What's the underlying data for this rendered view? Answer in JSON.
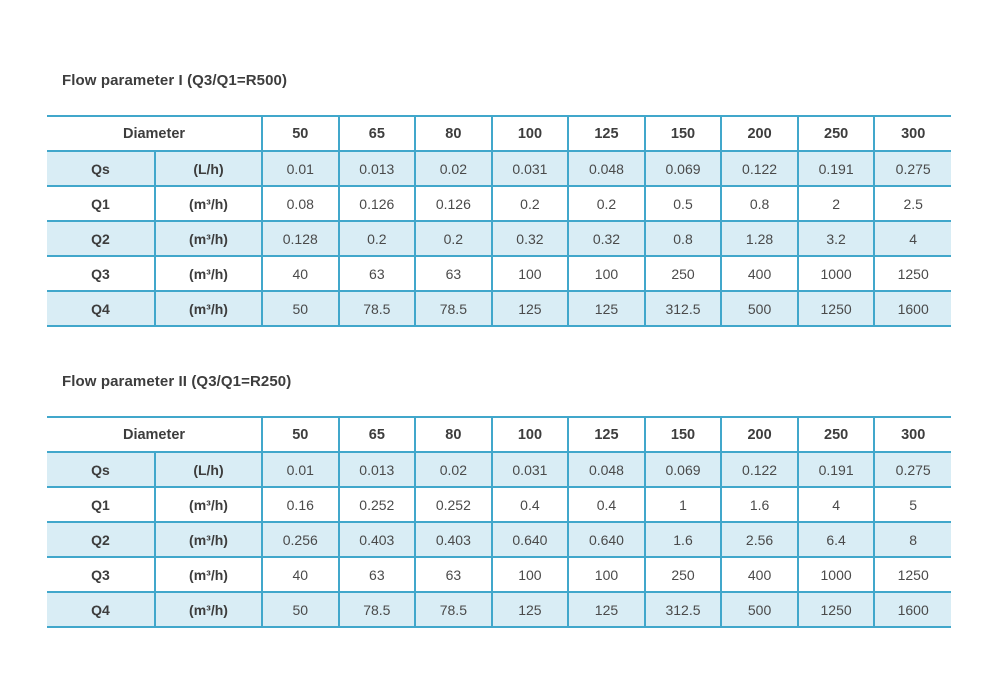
{
  "page": {
    "background": "#ffffff"
  },
  "colors": {
    "border": "#41a7cb",
    "row_fill": "#d9edf5",
    "value_text": "#4a4a4a",
    "heading_text": "#3d3d3d"
  },
  "tables": [
    {
      "title": "Flow parameter I (Q3/Q1=R500)",
      "header": {
        "label": "Diameter",
        "columns": [
          "50",
          "65",
          "80",
          "100",
          "125",
          "150",
          "200",
          "250",
          "300"
        ]
      },
      "rows": [
        {
          "name": "Qs",
          "unit": "(L/h)",
          "striped": true,
          "values": [
            "0.01",
            "0.013",
            "0.02",
            "0.031",
            "0.048",
            "0.069",
            "0.122",
            "0.191",
            "0.275"
          ]
        },
        {
          "name": "Q1",
          "unit": "(m³/h)",
          "striped": false,
          "values": [
            "0.08",
            "0.126",
            "0.126",
            "0.2",
            "0.2",
            "0.5",
            "0.8",
            "2",
            "2.5"
          ]
        },
        {
          "name": "Q2",
          "unit": "(m³/h)",
          "striped": true,
          "values": [
            "0.128",
            "0.2",
            "0.2",
            "0.32",
            "0.32",
            "0.8",
            "1.28",
            "3.2",
            "4"
          ]
        },
        {
          "name": "Q3",
          "unit": "(m³/h)",
          "striped": false,
          "values": [
            "40",
            "63",
            "63",
            "100",
            "100",
            "250",
            "400",
            "1000",
            "1250"
          ]
        },
        {
          "name": "Q4",
          "unit": "(m³/h)",
          "striped": true,
          "values": [
            "50",
            "78.5",
            "78.5",
            "125",
            "125",
            "312.5",
            "500",
            "1250",
            "1600"
          ]
        }
      ]
    },
    {
      "title": "Flow parameter II (Q3/Q1=R250)",
      "header": {
        "label": "Diameter",
        "columns": [
          "50",
          "65",
          "80",
          "100",
          "125",
          "150",
          "200",
          "250",
          "300"
        ]
      },
      "rows": [
        {
          "name": "Qs",
          "unit": "(L/h)",
          "striped": true,
          "values": [
            "0.01",
            "0.013",
            "0.02",
            "0.031",
            "0.048",
            "0.069",
            "0.122",
            "0.191",
            "0.275"
          ]
        },
        {
          "name": "Q1",
          "unit": "(m³/h)",
          "striped": false,
          "values": [
            "0.16",
            "0.252",
            "0.252",
            "0.4",
            "0.4",
            "1",
            "1.6",
            "4",
            "5"
          ]
        },
        {
          "name": "Q2",
          "unit": "(m³/h)",
          "striped": true,
          "values": [
            "0.256",
            "0.403",
            "0.403",
            "0.640",
            "0.640",
            "1.6",
            "2.56",
            "6.4",
            "8"
          ]
        },
        {
          "name": "Q3",
          "unit": "(m³/h)",
          "striped": false,
          "values": [
            "40",
            "63",
            "63",
            "100",
            "100",
            "250",
            "400",
            "1000",
            "1250"
          ]
        },
        {
          "name": "Q4",
          "unit": "(m³/h)",
          "striped": true,
          "values": [
            "50",
            "78.5",
            "78.5",
            "125",
            "125",
            "312.5",
            "500",
            "1250",
            "1600"
          ]
        }
      ]
    }
  ]
}
